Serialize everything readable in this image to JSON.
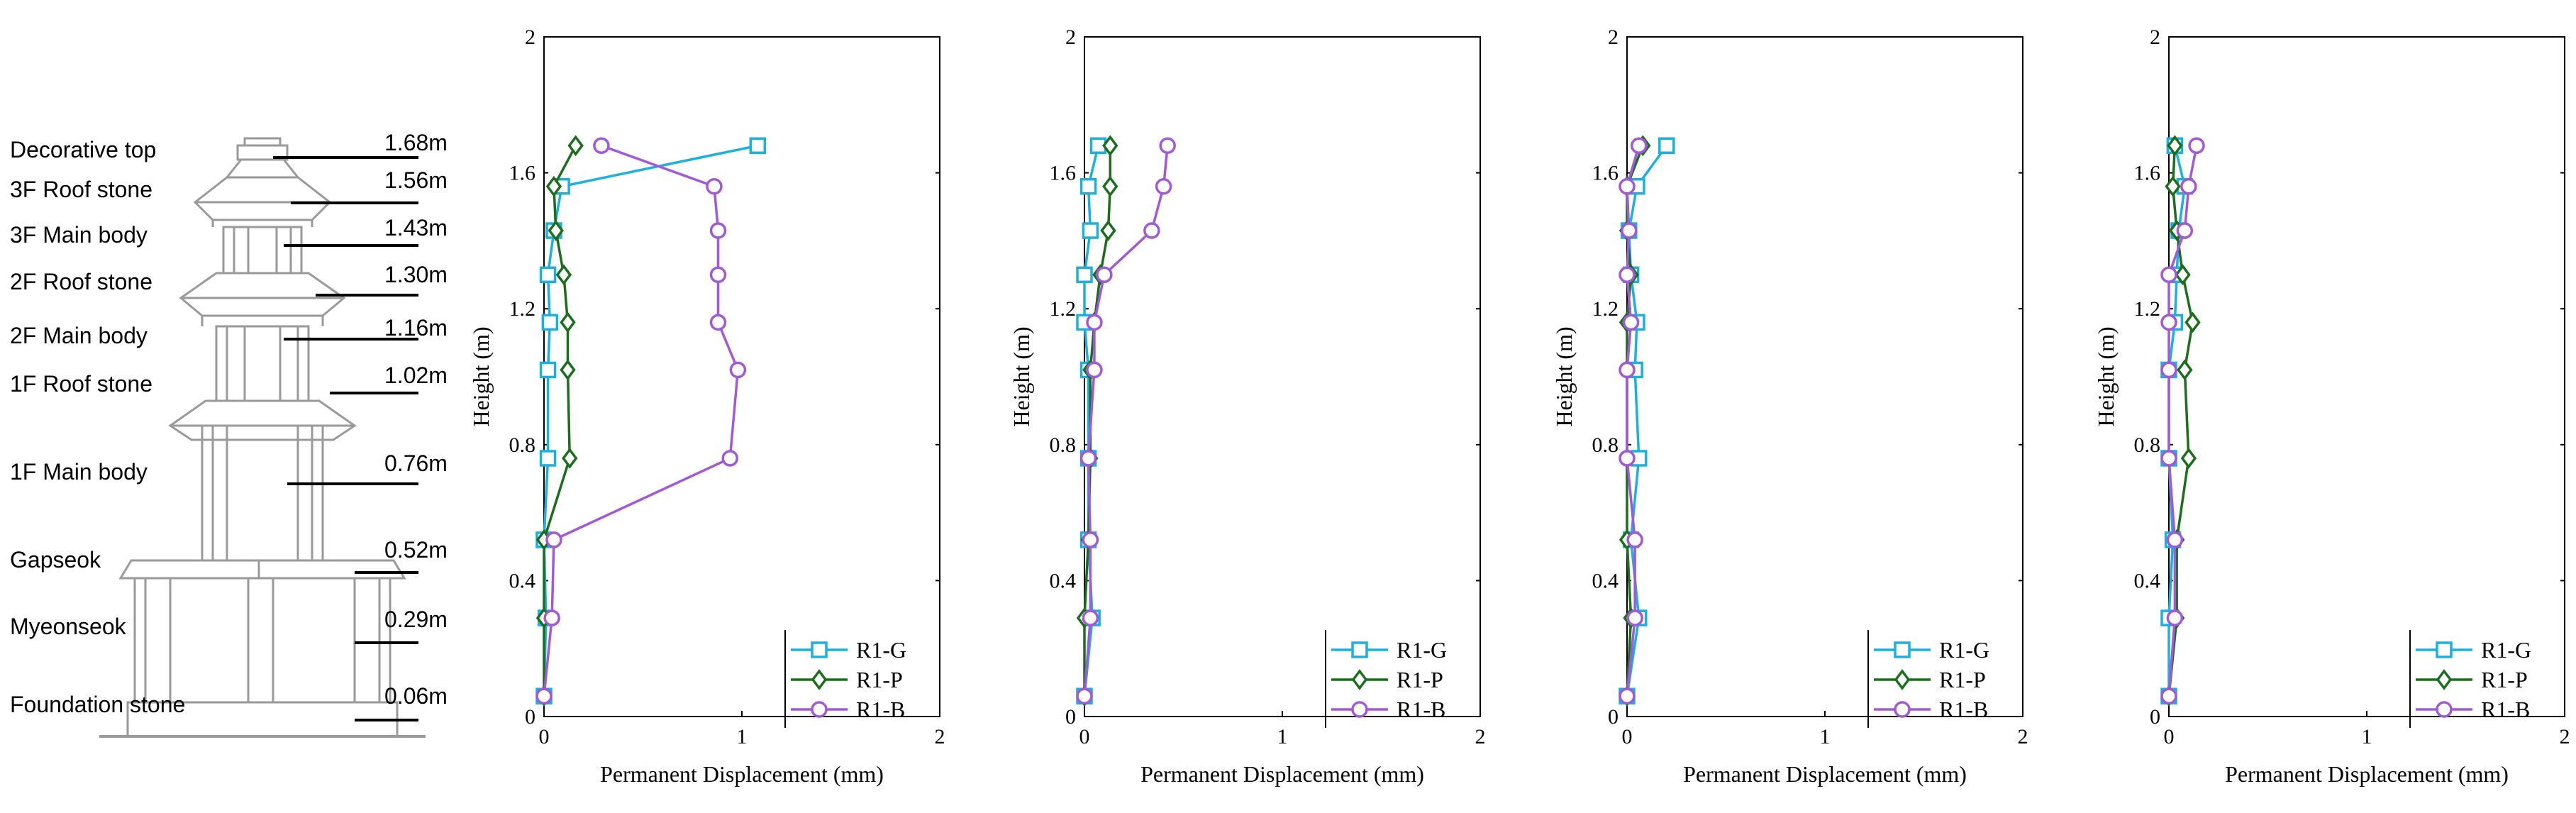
{
  "pagoda": {
    "components": [
      {
        "name": "Decorative top",
        "height": "1.68m"
      },
      {
        "name": "3F Roof stone",
        "height": "1.56m"
      },
      {
        "name": "3F Main body",
        "height": "1.43m"
      },
      {
        "name": "2F Roof stone",
        "height": "1.30m"
      },
      {
        "name": "2F Main body",
        "height": "1.16m"
      },
      {
        "name": "1F Roof stone",
        "height": "1.02m"
      },
      {
        "name": "1F Main body",
        "height": "0.76m"
      },
      {
        "name": "Gapseok",
        "height": "0.52m"
      },
      {
        "name": "Myeonseok",
        "height": "0.29m"
      },
      {
        "name": "Foundation stone",
        "height": "0.06m"
      }
    ]
  },
  "chart_data": [
    {
      "type": "line",
      "xlabel": "Permanent Displacement (mm)",
      "ylabel": "Height (m)",
      "xlim": [
        0,
        2
      ],
      "ylim": [
        0,
        2
      ],
      "xticks": [
        "0",
        "1",
        "2"
      ],
      "yticks": [
        "0",
        "0.4",
        "0.8",
        "1.2",
        "1.6",
        "2"
      ],
      "legend_position": "bottom-right",
      "series": [
        {
          "name": "R1-G",
          "color": "#1ab0e0",
          "marker": "square",
          "points": [
            [
              0.0,
              0.06
            ],
            [
              0.01,
              0.29
            ],
            [
              0.0,
              0.52
            ],
            [
              0.02,
              0.76
            ],
            [
              0.02,
              1.02
            ],
            [
              0.03,
              1.16
            ],
            [
              0.02,
              1.3
            ],
            [
              0.05,
              1.43
            ],
            [
              0.09,
              1.56
            ],
            [
              1.08,
              1.68
            ]
          ]
        },
        {
          "name": "R1-P",
          "color": "#1b6e1b",
          "marker": "diamond",
          "points": [
            [
              0.0,
              0.06
            ],
            [
              0.0,
              0.29
            ],
            [
              0.0,
              0.52
            ],
            [
              0.13,
              0.76
            ],
            [
              0.12,
              1.02
            ],
            [
              0.12,
              1.16
            ],
            [
              0.1,
              1.3
            ],
            [
              0.06,
              1.43
            ],
            [
              0.05,
              1.56
            ],
            [
              0.16,
              1.68
            ]
          ]
        },
        {
          "name": "R1-B",
          "color": "#a259d9",
          "marker": "circle",
          "points": [
            [
              0.0,
              0.06
            ],
            [
              0.04,
              0.29
            ],
            [
              0.05,
              0.52
            ],
            [
              0.94,
              0.76
            ],
            [
              0.98,
              1.02
            ],
            [
              0.88,
              1.16
            ],
            [
              0.88,
              1.3
            ],
            [
              0.88,
              1.43
            ],
            [
              0.86,
              1.56
            ],
            [
              0.29,
              1.68
            ]
          ]
        }
      ]
    },
    {
      "type": "line",
      "xlabel": "Permanent Displacement (mm)",
      "ylabel": "Height (m)",
      "xlim": [
        0,
        2
      ],
      "ylim": [
        0,
        2
      ],
      "xticks": [
        "0",
        "1",
        "2"
      ],
      "yticks": [
        "0",
        "0.4",
        "0.8",
        "1.2",
        "1.6",
        "2"
      ],
      "legend_position": "bottom-right",
      "series": [
        {
          "name": "R1-G",
          "color": "#1ab0e0",
          "marker": "square",
          "points": [
            [
              0.0,
              0.06
            ],
            [
              0.04,
              0.29
            ],
            [
              0.02,
              0.52
            ],
            [
              0.02,
              0.76
            ],
            [
              0.02,
              1.02
            ],
            [
              0.0,
              1.16
            ],
            [
              0.0,
              1.3
            ],
            [
              0.03,
              1.43
            ],
            [
              0.02,
              1.56
            ],
            [
              0.07,
              1.68
            ]
          ]
        },
        {
          "name": "R1-P",
          "color": "#1b6e1b",
          "marker": "diamond",
          "points": [
            [
              0.0,
              0.06
            ],
            [
              0.0,
              0.29
            ],
            [
              0.02,
              0.52
            ],
            [
              0.03,
              0.76
            ],
            [
              0.03,
              1.02
            ],
            [
              0.05,
              1.16
            ],
            [
              0.08,
              1.3
            ],
            [
              0.12,
              1.43
            ],
            [
              0.13,
              1.56
            ],
            [
              0.13,
              1.68
            ]
          ]
        },
        {
          "name": "R1-B",
          "color": "#a259d9",
          "marker": "circle",
          "points": [
            [
              0.0,
              0.06
            ],
            [
              0.03,
              0.29
            ],
            [
              0.03,
              0.52
            ],
            [
              0.02,
              0.76
            ],
            [
              0.05,
              1.02
            ],
            [
              0.05,
              1.16
            ],
            [
              0.1,
              1.3
            ],
            [
              0.34,
              1.43
            ],
            [
              0.4,
              1.56
            ],
            [
              0.42,
              1.68
            ]
          ]
        }
      ]
    },
    {
      "type": "line",
      "xlabel": "Permanent Displacement (mm)",
      "ylabel": "Height (m)",
      "xlim": [
        0,
        2
      ],
      "ylim": [
        0,
        2
      ],
      "xticks": [
        "0",
        "1",
        "2"
      ],
      "yticks": [
        "0",
        "0.4",
        "0.8",
        "1.2",
        "1.6",
        "2"
      ],
      "legend_position": "bottom-right",
      "series": [
        {
          "name": "R1-G",
          "color": "#1ab0e0",
          "marker": "square",
          "points": [
            [
              0.0,
              0.06
            ],
            [
              0.06,
              0.29
            ],
            [
              0.02,
              0.52
            ],
            [
              0.06,
              0.76
            ],
            [
              0.04,
              1.02
            ],
            [
              0.05,
              1.16
            ],
            [
              0.02,
              1.3
            ],
            [
              0.01,
              1.43
            ],
            [
              0.05,
              1.56
            ],
            [
              0.2,
              1.68
            ]
          ]
        },
        {
          "name": "R1-P",
          "color": "#1b6e1b",
          "marker": "diamond",
          "points": [
            [
              0.0,
              0.06
            ],
            [
              0.02,
              0.29
            ],
            [
              0.0,
              0.52
            ],
            [
              0.0,
              0.76
            ],
            [
              0.0,
              1.02
            ],
            [
              0.0,
              1.16
            ],
            [
              0.02,
              1.3
            ],
            [
              0.0,
              1.43
            ],
            [
              0.0,
              1.56
            ],
            [
              0.08,
              1.68
            ]
          ]
        },
        {
          "name": "R1-B",
          "color": "#a259d9",
          "marker": "circle",
          "points": [
            [
              0.0,
              0.06
            ],
            [
              0.04,
              0.29
            ],
            [
              0.04,
              0.52
            ],
            [
              0.0,
              0.76
            ],
            [
              0.0,
              1.02
            ],
            [
              0.02,
              1.16
            ],
            [
              0.0,
              1.3
            ],
            [
              0.01,
              1.43
            ],
            [
              0.0,
              1.56
            ],
            [
              0.06,
              1.68
            ]
          ]
        }
      ]
    },
    {
      "type": "line",
      "xlabel": "Permanent Displacement (mm)",
      "ylabel": "Height (m)",
      "xlim": [
        0,
        2
      ],
      "ylim": [
        0,
        2
      ],
      "xticks": [
        "0",
        "1",
        "2"
      ],
      "yticks": [
        "0",
        "0.4",
        "0.8",
        "1.2",
        "1.6",
        "2"
      ],
      "legend_position": "bottom-right",
      "series": [
        {
          "name": "R1-G",
          "color": "#1ab0e0",
          "marker": "square",
          "points": [
            [
              0.0,
              0.06
            ],
            [
              0.0,
              0.29
            ],
            [
              0.02,
              0.52
            ],
            [
              0.0,
              0.76
            ],
            [
              0.0,
              1.02
            ],
            [
              0.03,
              1.16
            ],
            [
              0.04,
              1.3
            ],
            [
              0.05,
              1.43
            ],
            [
              0.08,
              1.56
            ],
            [
              0.03,
              1.68
            ]
          ]
        },
        {
          "name": "R1-P",
          "color": "#1b6e1b",
          "marker": "diamond",
          "points": [
            [
              0.0,
              0.06
            ],
            [
              0.04,
              0.29
            ],
            [
              0.04,
              0.52
            ],
            [
              0.1,
              0.76
            ],
            [
              0.08,
              1.02
            ],
            [
              0.12,
              1.16
            ],
            [
              0.07,
              1.3
            ],
            [
              0.04,
              1.43
            ],
            [
              0.02,
              1.56
            ],
            [
              0.03,
              1.68
            ]
          ]
        },
        {
          "name": "R1-B",
          "color": "#a259d9",
          "marker": "circle",
          "points": [
            [
              0.0,
              0.06
            ],
            [
              0.03,
              0.29
            ],
            [
              0.03,
              0.52
            ],
            [
              0.0,
              0.76
            ],
            [
              0.0,
              1.02
            ],
            [
              0.0,
              1.16
            ],
            [
              0.0,
              1.3
            ],
            [
              0.08,
              1.43
            ],
            [
              0.1,
              1.56
            ],
            [
              0.14,
              1.68
            ]
          ]
        }
      ]
    }
  ]
}
